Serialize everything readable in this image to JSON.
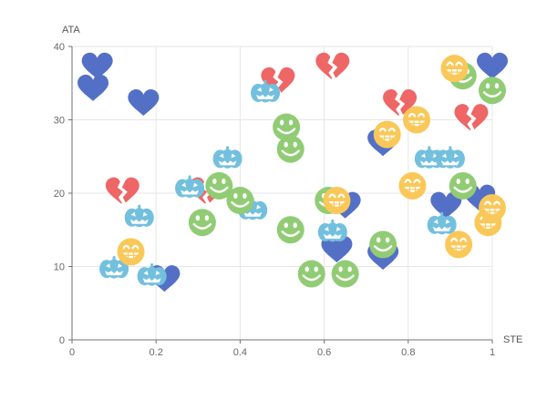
{
  "chart_data": {
    "type": "scatter",
    "title": "",
    "xlabel": "STE",
    "ylabel": "ATA",
    "xlim": [
      0,
      1
    ],
    "ylim": [
      0,
      40
    ],
    "x_ticks": [
      "0",
      "0.2",
      "0.4",
      "0.6",
      "0.8",
      "1"
    ],
    "y_ticks": [
      "0",
      "10",
      "20",
      "30",
      "40"
    ],
    "grid": true,
    "legend": "none",
    "series": [
      {
        "symbol": "broken-heart",
        "color": "#ee6666",
        "points": [
          [
            0.12,
            20.3
          ],
          [
            0.32,
            20.3
          ],
          [
            0.49,
            35.3
          ],
          [
            0.62,
            37.3
          ],
          [
            0.78,
            32.3
          ],
          [
            0.95,
            30.3
          ]
        ]
      },
      {
        "symbol": "heart",
        "color": "#5470c6",
        "points": [
          [
            0.06,
            37.3
          ],
          [
            0.05,
            34.3
          ],
          [
            0.17,
            32.3
          ],
          [
            0.22,
            8.3
          ],
          [
            0.65,
            18.3
          ],
          [
            0.63,
            12.3
          ],
          [
            0.74,
            26.8
          ],
          [
            0.74,
            11.3
          ],
          [
            0.89,
            18.3
          ],
          [
            0.97,
            19.3
          ],
          [
            1.0,
            37.3
          ]
        ]
      },
      {
        "symbol": "pumpkin",
        "color": "#73c0de",
        "points": [
          [
            0.1,
            9.8
          ],
          [
            0.16,
            16.8
          ],
          [
            0.19,
            8.8
          ],
          [
            0.28,
            20.8
          ],
          [
            0.37,
            24.8
          ],
          [
            0.43,
            17.8
          ],
          [
            0.46,
            33.8
          ],
          [
            0.62,
            14.8
          ],
          [
            0.85,
            24.8
          ],
          [
            0.9,
            24.8
          ],
          [
            0.88,
            15.8
          ]
        ]
      },
      {
        "symbol": "smiley",
        "color": "#91cc75",
        "points": [
          [
            0.31,
            16
          ],
          [
            0.35,
            21
          ],
          [
            0.4,
            19
          ],
          [
            0.51,
            29
          ],
          [
            0.52,
            26
          ],
          [
            0.52,
            15
          ],
          [
            0.57,
            9
          ],
          [
            0.61,
            19
          ],
          [
            0.65,
            9
          ],
          [
            0.74,
            13
          ],
          [
            0.93,
            21
          ],
          [
            0.93,
            36
          ],
          [
            1.0,
            34
          ]
        ]
      },
      {
        "symbol": "grin",
        "color": "#fac858",
        "points": [
          [
            0.14,
            12
          ],
          [
            0.63,
            19
          ],
          [
            0.75,
            28
          ],
          [
            0.82,
            30
          ],
          [
            0.81,
            21
          ],
          [
            0.91,
            37
          ],
          [
            0.92,
            13
          ],
          [
            0.99,
            16
          ],
          [
            1.0,
            18
          ]
        ]
      }
    ]
  }
}
